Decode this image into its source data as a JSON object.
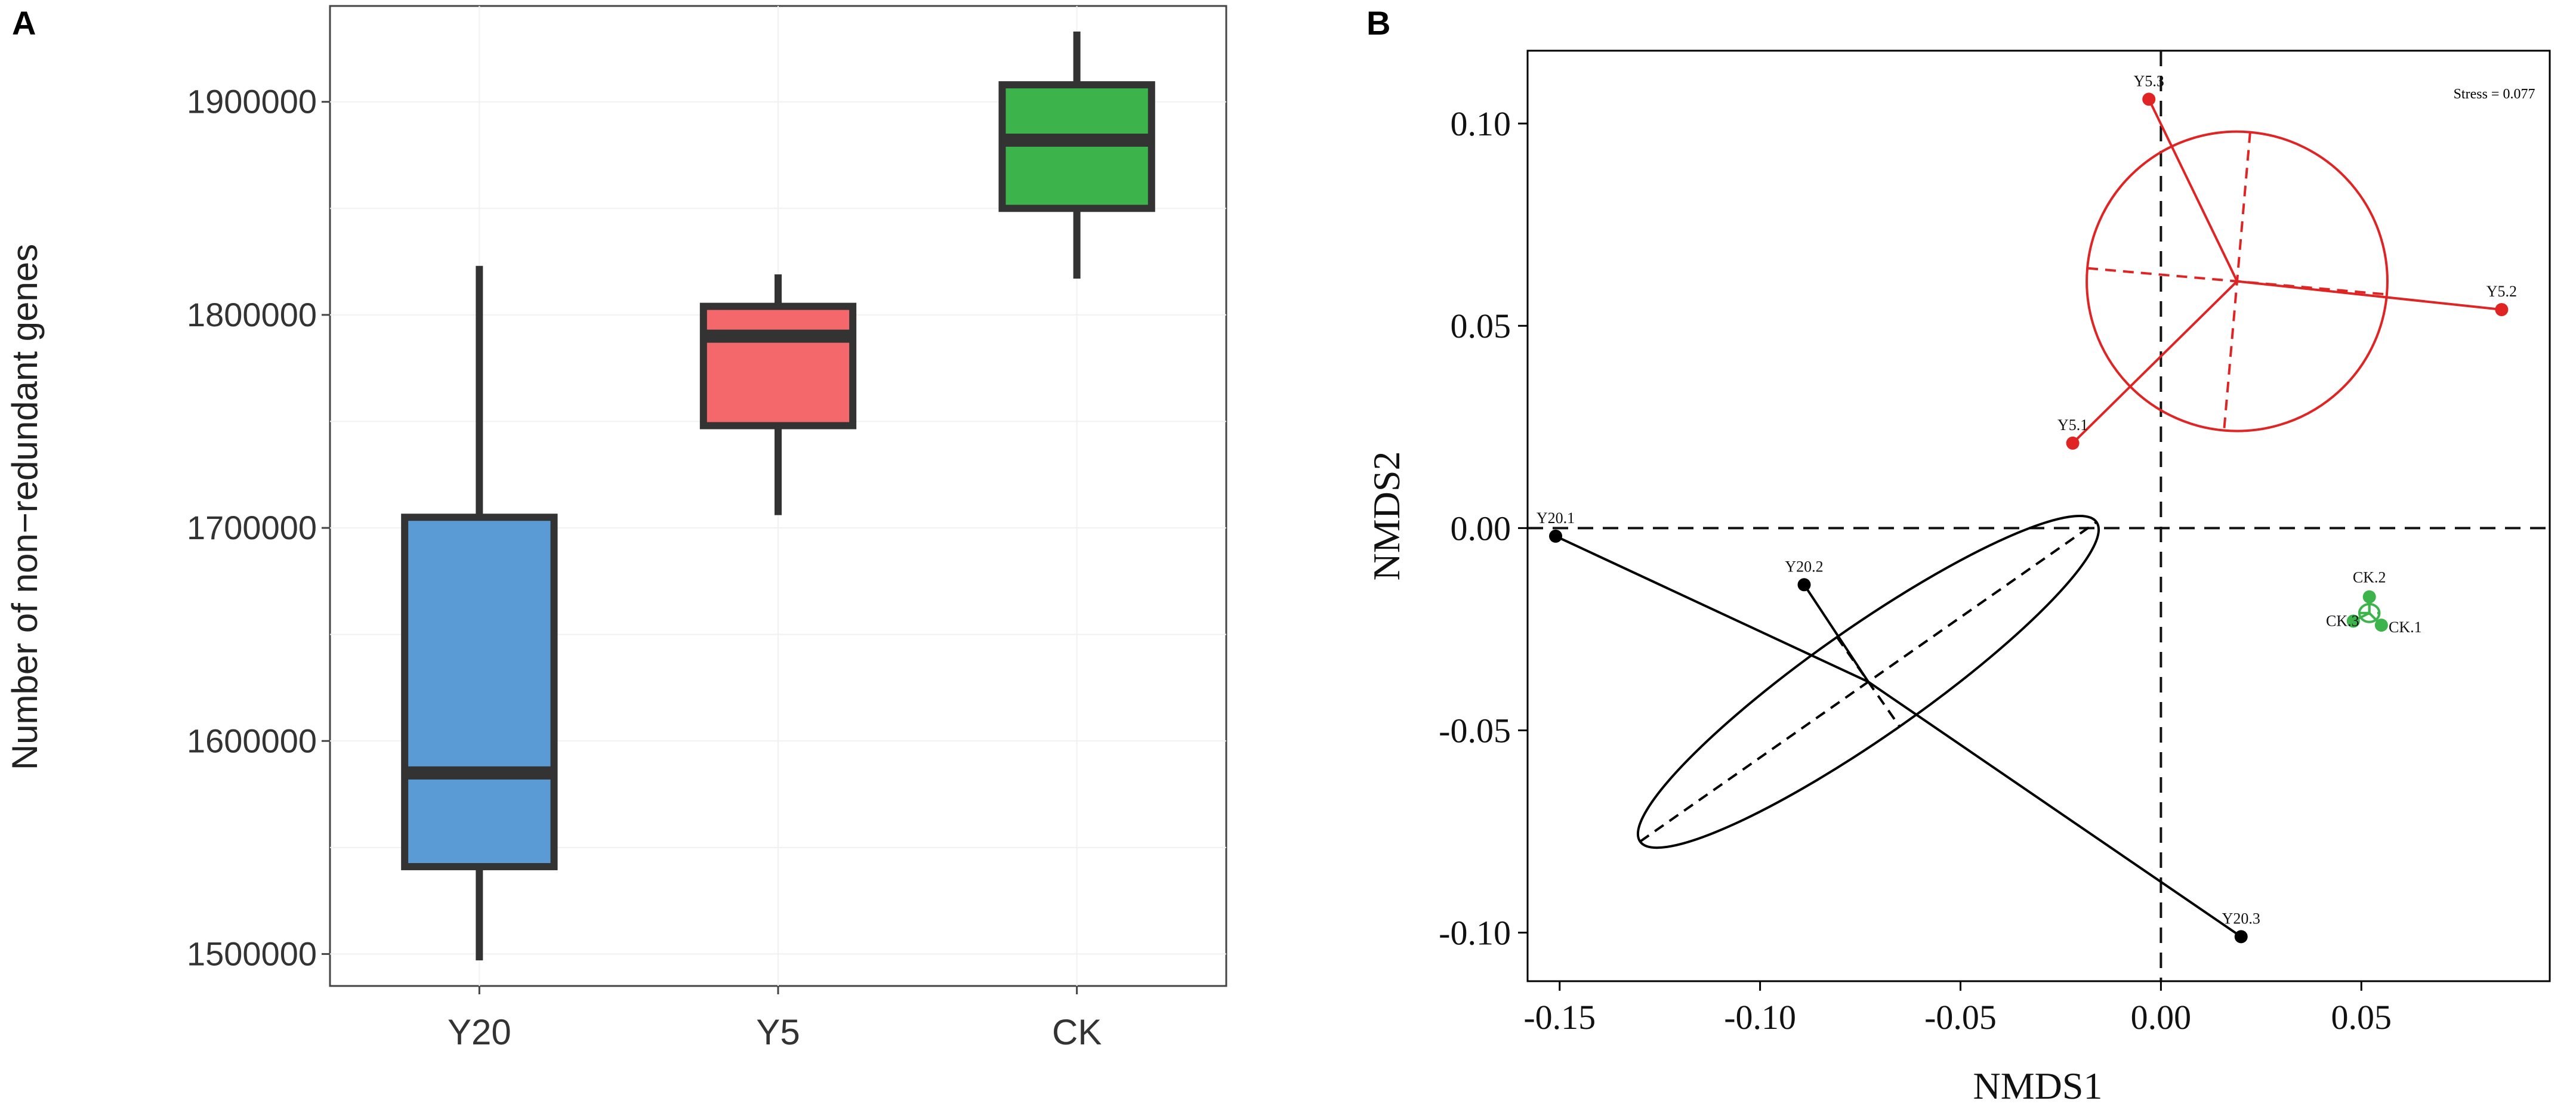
{
  "figure": {
    "panel_a_label": "A",
    "panel_b_label": "B"
  },
  "chart_data": [
    {
      "type": "box",
      "title": "",
      "xlabel": "",
      "ylabel": "Number of non−redundant genes",
      "categories": [
        "Y20",
        "Y5",
        "CK"
      ],
      "ylim": [
        1485000,
        1945000
      ],
      "yticks": [
        1500000,
        1600000,
        1700000,
        1800000,
        1900000
      ],
      "ytick_labels": [
        "1500000",
        "1600000",
        "1700000",
        "1800000",
        "1900000"
      ],
      "grid": true,
      "boxes": [
        {
          "name": "Y20",
          "min": 1497000,
          "q1": 1541000,
          "median": 1585000,
          "q3": 1705000,
          "max": 1823000,
          "color": "#5b9bd5"
        },
        {
          "name": "Y5",
          "min": 1706000,
          "q1": 1748000,
          "median": 1790000,
          "q3": 1804000,
          "max": 1819000,
          "color": "#f4686b"
        },
        {
          "name": "CK",
          "min": 1817000,
          "q1": 1850000,
          "median": 1882000,
          "q3": 1908000,
          "max": 1933000,
          "color": "#3cb44b"
        }
      ]
    },
    {
      "type": "scatter",
      "title": "",
      "xlabel": "NMDS1",
      "ylabel": "NMDS2",
      "xlim": [
        -0.158,
        0.097
      ],
      "ylim": [
        -0.112,
        0.118
      ],
      "xticks": [
        -0.15,
        -0.1,
        -0.05,
        0.0,
        0.05
      ],
      "xtick_labels": [
        "-0.15",
        "-0.10",
        "-0.05",
        "0.00",
        "0.05"
      ],
      "yticks": [
        -0.1,
        -0.05,
        0.0,
        0.05,
        0.1
      ],
      "ytick_labels": [
        "-0.10",
        "-0.05",
        "0.00",
        "0.05",
        "0.10"
      ],
      "annotation": "Stress = 0.077",
      "reference_lines": {
        "x": 0.0,
        "y": 0.0
      },
      "series": [
        {
          "name": "Y5",
          "color": "#e02424",
          "centroid": [
            0.019,
            0.061
          ],
          "ellipse": {
            "rx": 0.0375,
            "ry": 0.037,
            "angle_deg": -5
          },
          "points": [
            {
              "label": "Y5.1",
              "x": -0.022,
              "y": 0.021
            },
            {
              "label": "Y5.2",
              "x": 0.085,
              "y": 0.054
            },
            {
              "label": "Y5.3",
              "x": -0.003,
              "y": 0.106
            }
          ]
        },
        {
          "name": "Y20",
          "color": "#000000",
          "centroid": [
            -0.073,
            -0.038
          ],
          "ellipse": {
            "rx": 0.0695,
            "ry": 0.0135,
            "angle_deg": 35
          },
          "points": [
            {
              "label": "Y20.1",
              "x": -0.151,
              "y": -0.002
            },
            {
              "label": "Y20.2",
              "x": -0.089,
              "y": -0.014
            },
            {
              "label": "Y20.3",
              "x": 0.02,
              "y": -0.101
            }
          ]
        },
        {
          "name": "CK",
          "color": "#3cb44b",
          "centroid": [
            0.052,
            -0.021
          ],
          "ellipse": {
            "rx": 0.0025,
            "ry": 0.0022,
            "angle_deg": 0
          },
          "points": [
            {
              "label": "CK.1",
              "x": 0.055,
              "y": -0.024
            },
            {
              "label": "CK.2",
              "x": 0.052,
              "y": -0.017
            },
            {
              "label": "CK.3",
              "x": 0.048,
              "y": -0.023
            }
          ]
        }
      ]
    }
  ]
}
